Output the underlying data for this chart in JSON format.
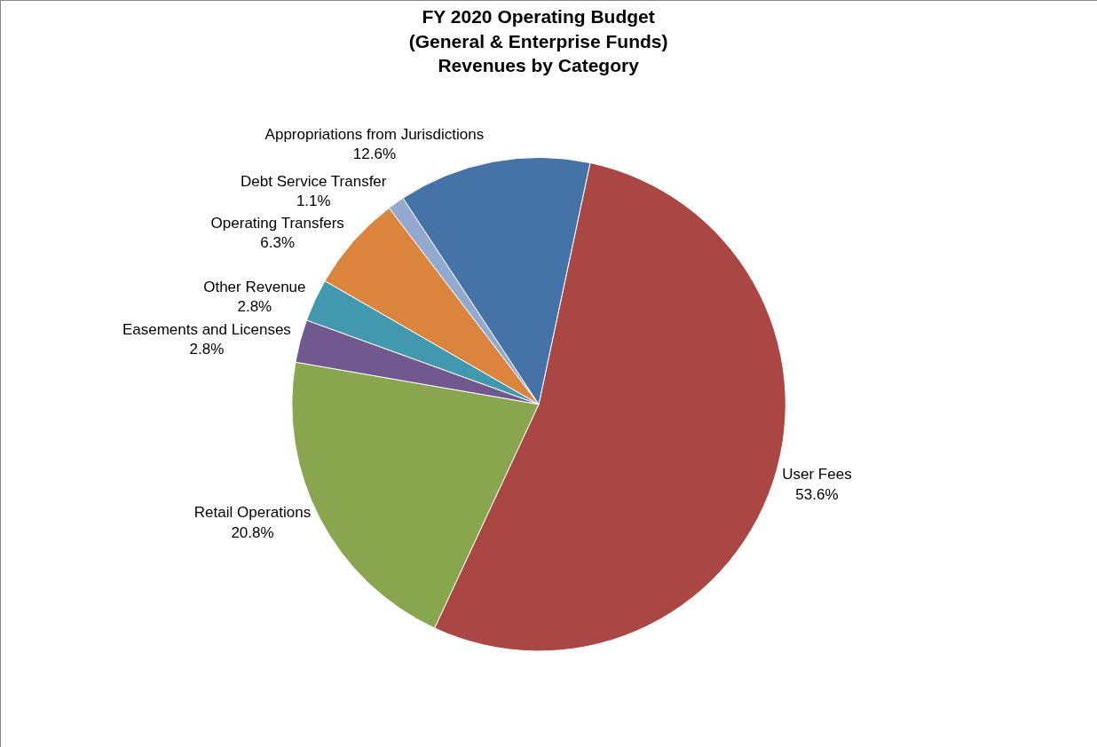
{
  "chart_data": {
    "type": "pie",
    "title": "FY 2020 Operating Budget\n(General & Enterprise Funds)\nRevenues by Category",
    "categories": [
      "User Fees",
      "Retail Operations",
      "Easements and Licenses",
      "Other Revenue",
      "Operating Transfers",
      "Debt Service Transfer",
      "Appropriations from Jurisdictions"
    ],
    "values": [
      53.6,
      20.8,
      2.8,
      2.8,
      6.3,
      1.1,
      12.6
    ],
    "value_labels": [
      "53.6%",
      "20.8%",
      "2.8%",
      "2.8%",
      "6.3%",
      "1.1%",
      "12.6%"
    ],
    "colors": [
      "#aa4643",
      "#89a54e",
      "#71588f",
      "#4198af",
      "#db843d",
      "#93a9cf",
      "#4572a7"
    ],
    "legend": false
  }
}
